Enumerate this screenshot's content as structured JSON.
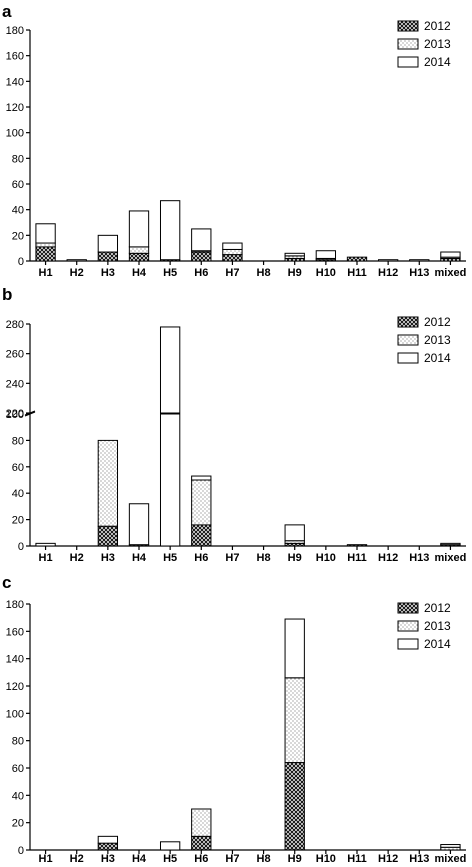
{
  "chart_data": [
    {
      "type": "bar",
      "stacked": true,
      "panel_label": "a",
      "categories": [
        "H1",
        "H2",
        "H3",
        "H4",
        "H5",
        "H6",
        "H7",
        "H8",
        "H9",
        "H10",
        "H11",
        "H12",
        "H13",
        "mixed"
      ],
      "ylim": [
        0,
        180
      ],
      "yticks": [
        0,
        20,
        40,
        60,
        80,
        100,
        120,
        140,
        160,
        180
      ],
      "legend_position": "top-right",
      "series": [
        {
          "name": "2012",
          "pattern": "crosshatch",
          "values": [
            11,
            0,
            7,
            6,
            1,
            7,
            5,
            0,
            2,
            1,
            3,
            0,
            0,
            2
          ]
        },
        {
          "name": "2013",
          "pattern": "dotted",
          "values": [
            3,
            0,
            0,
            5,
            0,
            1,
            4,
            0,
            2,
            1,
            0,
            0,
            0,
            1
          ]
        },
        {
          "name": "2014",
          "pattern": "empty",
          "values": [
            15,
            1,
            13,
            28,
            46,
            17,
            5,
            0,
            2,
            6,
            0,
            1,
            1,
            4
          ]
        }
      ]
    },
    {
      "type": "bar",
      "stacked": true,
      "broken_axis": true,
      "panel_label": "b",
      "categories": [
        "H1",
        "H2",
        "H3",
        "H4",
        "H5",
        "H6",
        "H7",
        "H8",
        "H9",
        "H10",
        "H11",
        "H12",
        "H13",
        "mixed"
      ],
      "ylim_lower": [
        0,
        100
      ],
      "ylim_upper": [
        220,
        280
      ],
      "yticks_lower": [
        0,
        20,
        40,
        60,
        80,
        100
      ],
      "yticks_upper": [
        220,
        240,
        260,
        280
      ],
      "legend_position": "top-right",
      "series": [
        {
          "name": "2012",
          "pattern": "crosshatch",
          "values": [
            0,
            0,
            15,
            1,
            0,
            16,
            0,
            0,
            2,
            0,
            1,
            0,
            0,
            1
          ]
        },
        {
          "name": "2013",
          "pattern": "dotted",
          "values": [
            0,
            0,
            65,
            0,
            0,
            34,
            0,
            0,
            2,
            0,
            0,
            0,
            0,
            0
          ]
        },
        {
          "name": "2014",
          "pattern": "empty",
          "values": [
            2,
            0,
            0,
            31,
            278,
            3,
            0,
            0,
            12,
            0,
            0,
            0,
            0,
            1
          ]
        }
      ]
    },
    {
      "type": "bar",
      "stacked": true,
      "panel_label": "c",
      "categories": [
        "H1",
        "H2",
        "H3",
        "H4",
        "H5",
        "H6",
        "H7",
        "H8",
        "H9",
        "H10",
        "H11",
        "H12",
        "H13",
        "mixed"
      ],
      "ylim": [
        0,
        180
      ],
      "yticks": [
        0,
        20,
        40,
        60,
        80,
        100,
        120,
        140,
        160,
        180
      ],
      "legend_position": "top-right",
      "series": [
        {
          "name": "2012",
          "pattern": "crosshatch",
          "values": [
            0,
            0,
            5,
            0,
            0,
            10,
            0,
            0,
            64,
            0,
            0,
            0,
            0,
            0
          ]
        },
        {
          "name": "2013",
          "pattern": "dotted",
          "values": [
            0,
            0,
            0,
            0,
            0,
            20,
            0,
            0,
            62,
            0,
            0,
            0,
            0,
            2
          ]
        },
        {
          "name": "2014",
          "pattern": "empty",
          "values": [
            0,
            0,
            5,
            0,
            6,
            0,
            0,
            0,
            43,
            0,
            0,
            0,
            0,
            2
          ]
        }
      ]
    }
  ]
}
